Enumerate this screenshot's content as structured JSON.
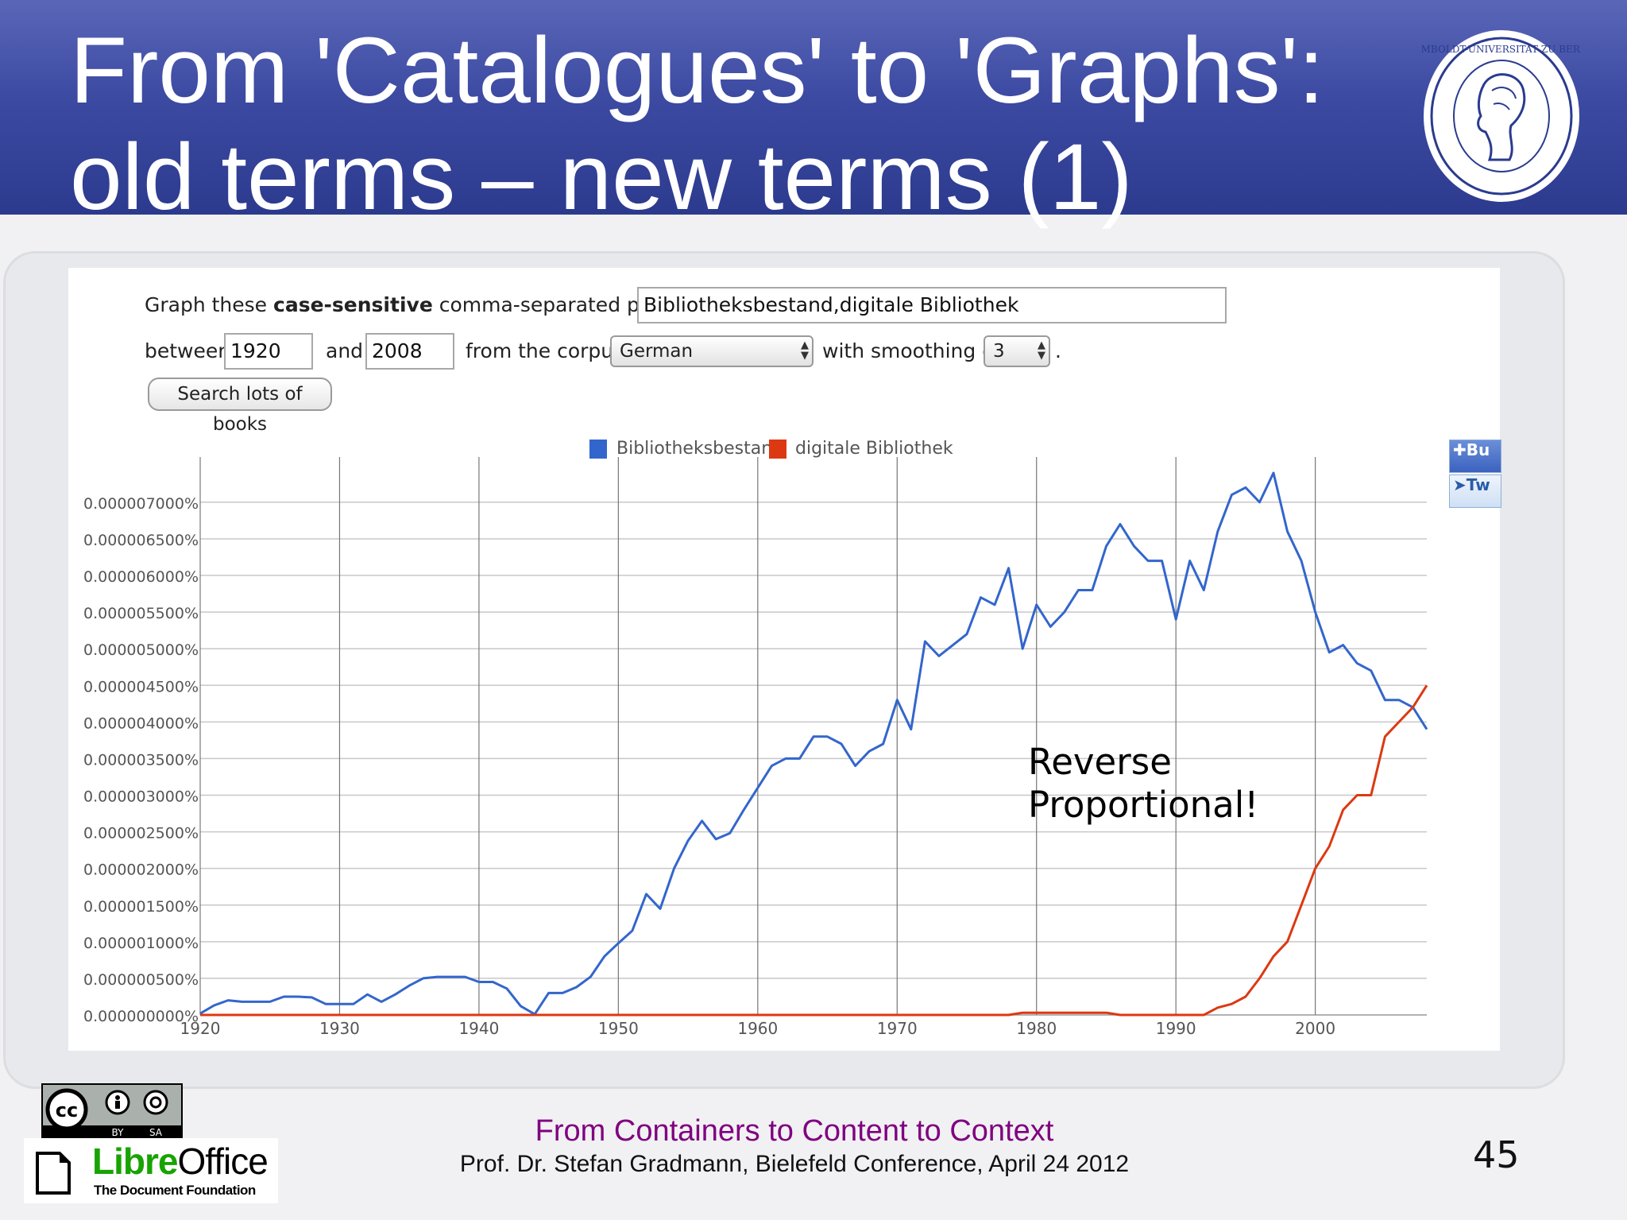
{
  "slide": {
    "title_lines": [
      "From 'Catalogues' to 'Graphs':",
      "old terms – new terms (1)"
    ],
    "footer_title": "From Containers to Content to Context",
    "footer_subtitle": "Prof. Dr. Stefan Gradmann, Bielefeld Conference, April 24 2012",
    "page_number": "45",
    "annotation": [
      "Reverse",
      "Proportional!"
    ],
    "seal_text": "HUMBOLDT-UNIVERSITÄT ZU BERLIN",
    "cc_labels": [
      "BY",
      "SA"
    ],
    "libreoffice": {
      "name_green": "Libre",
      "name_dark": "Office",
      "tagline": "The Document Foundation"
    }
  },
  "ngram_form": {
    "phrases_label_pre": "Graph these ",
    "phrases_label_bold": "case-sensitive",
    "phrases_label_post": " comma-separated phrases:",
    "phrases_value": "Bibliotheksbestand,digitale Bibliothek",
    "between_label": "between",
    "start_year": "1920",
    "and_label": "and",
    "end_year": "2008",
    "corpus_label": "from the corpus",
    "corpus_value": "German",
    "smoothing_label": "with smoothing of",
    "smoothing_value": "3",
    "period": ".",
    "search_button": "Search lots of books",
    "share_buttons": [
      "Bu",
      "Tw"
    ]
  },
  "colors": {
    "header": "#3c4aa2",
    "series_blue": "#3366cc",
    "series_red": "#dc3912",
    "footer_purple": "#800080"
  },
  "chart_data": {
    "type": "line",
    "title": "",
    "xlabel": "",
    "ylabel": "",
    "xlim": [
      1920,
      2008
    ],
    "ylim": [
      0,
      7.4e-06
    ],
    "x_ticks": [
      "1920",
      "1930",
      "1940",
      "1950",
      "1960",
      "1970",
      "1980",
      "1990",
      "2000"
    ],
    "y_ticks": [
      "0.000007000%",
      "0.000006500%",
      "0.000006000%",
      "0.000005500%",
      "0.000005000%",
      "0.000004500%",
      "0.000004000%",
      "0.000003500%",
      "0.000003000%",
      "0.000002500%",
      "0.000002000%",
      "0.000001500%",
      "0.000001000%",
      "0.000000500%",
      "0.000000000%"
    ],
    "y_tick_values": [
      7e-06,
      6.5e-06,
      6e-06,
      5.5e-06,
      5e-06,
      4.5e-06,
      4e-06,
      3.5e-06,
      3e-06,
      2.5e-06,
      2e-06,
      1.5e-06,
      1e-06,
      5e-07,
      0
    ],
    "legend_position": "top-center",
    "grid": true,
    "series": [
      {
        "name": "Bibliotheksbestand",
        "color": "#3366cc",
        "points": [
          [
            1920,
            2e-08
          ],
          [
            1921,
            1.3e-07
          ],
          [
            1922,
            2e-07
          ],
          [
            1923,
            1.8e-07
          ],
          [
            1924,
            1.8e-07
          ],
          [
            1925,
            1.8e-07
          ],
          [
            1926,
            2.5e-07
          ],
          [
            1927,
            2.5e-07
          ],
          [
            1928,
            2.4e-07
          ],
          [
            1929,
            1.5e-07
          ],
          [
            1930,
            1.5e-07
          ],
          [
            1931,
            1.5e-07
          ],
          [
            1932,
            2.8e-07
          ],
          [
            1933,
            1.8e-07
          ],
          [
            1934,
            2.8e-07
          ],
          [
            1935,
            4e-07
          ],
          [
            1936,
            5e-07
          ],
          [
            1937,
            5.2e-07
          ],
          [
            1938,
            5.2e-07
          ],
          [
            1939,
            5.2e-07
          ],
          [
            1940,
            4.5e-07
          ],
          [
            1941,
            4.5e-07
          ],
          [
            1942,
            3.6e-07
          ],
          [
            1943,
            1.2e-07
          ],
          [
            1944,
            1e-08
          ],
          [
            1945,
            3e-07
          ],
          [
            1946,
            3e-07
          ],
          [
            1947,
            3.8e-07
          ],
          [
            1948,
            5.2e-07
          ],
          [
            1949,
            8e-07
          ],
          [
            1950,
            9.8e-07
          ],
          [
            1951,
            1.15e-06
          ],
          [
            1952,
            1.65e-06
          ],
          [
            1953,
            1.45e-06
          ],
          [
            1954,
            2e-06
          ],
          [
            1955,
            2.38e-06
          ],
          [
            1956,
            2.65e-06
          ],
          [
            1957,
            2.4e-06
          ],
          [
            1958,
            2.48e-06
          ],
          [
            1959,
            2.8e-06
          ],
          [
            1960,
            3.1e-06
          ],
          [
            1961,
            3.4e-06
          ],
          [
            1962,
            3.5e-06
          ],
          [
            1963,
            3.5e-06
          ],
          [
            1964,
            3.8e-06
          ],
          [
            1965,
            3.8e-06
          ],
          [
            1966,
            3.7e-06
          ],
          [
            1967,
            3.4e-06
          ],
          [
            1968,
            3.6e-06
          ],
          [
            1969,
            3.7e-06
          ],
          [
            1970,
            4.3e-06
          ],
          [
            1971,
            3.9e-06
          ],
          [
            1972,
            5.1e-06
          ],
          [
            1973,
            4.9e-06
          ],
          [
            1974,
            5.05e-06
          ],
          [
            1975,
            5.2e-06
          ],
          [
            1976,
            5.7e-06
          ],
          [
            1977,
            5.6e-06
          ],
          [
            1978,
            6.1e-06
          ],
          [
            1979,
            5e-06
          ],
          [
            1980,
            5.6e-06
          ],
          [
            1981,
            5.3e-06
          ],
          [
            1982,
            5.5e-06
          ],
          [
            1983,
            5.8e-06
          ],
          [
            1984,
            5.8e-06
          ],
          [
            1985,
            6.4e-06
          ],
          [
            1986,
            6.7e-06
          ],
          [
            1987,
            6.4e-06
          ],
          [
            1988,
            6.2e-06
          ],
          [
            1989,
            6.2e-06
          ],
          [
            1990,
            5.4e-06
          ],
          [
            1991,
            6.2e-06
          ],
          [
            1992,
            5.8e-06
          ],
          [
            1993,
            6.6e-06
          ],
          [
            1994,
            7.1e-06
          ],
          [
            1995,
            7.2e-06
          ],
          [
            1996,
            7e-06
          ],
          [
            1997,
            7.4e-06
          ],
          [
            1998,
            6.6e-06
          ],
          [
            1999,
            6.2e-06
          ],
          [
            2000,
            5.5e-06
          ],
          [
            2001,
            4.95e-06
          ],
          [
            2002,
            5.05e-06
          ],
          [
            2003,
            4.8e-06
          ],
          [
            2004,
            4.7e-06
          ],
          [
            2005,
            4.3e-06
          ],
          [
            2006,
            4.3e-06
          ],
          [
            2007,
            4.2e-06
          ],
          [
            2008,
            3.9e-06
          ]
        ]
      },
      {
        "name": "digitale Bibliothek",
        "color": "#dc3912",
        "points": [
          [
            1920,
            0.0
          ],
          [
            1970,
            0.0
          ],
          [
            1978,
            0.0
          ],
          [
            1979,
            3e-08
          ],
          [
            1980,
            3e-08
          ],
          [
            1981,
            3e-08
          ],
          [
            1982,
            3e-08
          ],
          [
            1983,
            3e-08
          ],
          [
            1984,
            3e-08
          ],
          [
            1985,
            3e-08
          ],
          [
            1986,
            0.0
          ],
          [
            1990,
            0.0
          ],
          [
            1992,
            0.0
          ],
          [
            1993,
            1e-07
          ],
          [
            1994,
            1.5e-07
          ],
          [
            1995,
            2.5e-07
          ],
          [
            1996,
            5e-07
          ],
          [
            1997,
            8e-07
          ],
          [
            1998,
            1e-06
          ],
          [
            1999,
            1.5e-06
          ],
          [
            2000,
            2e-06
          ],
          [
            2001,
            2.3e-06
          ],
          [
            2002,
            2.8e-06
          ],
          [
            2003,
            3e-06
          ],
          [
            2004,
            3e-06
          ],
          [
            2005,
            3.8e-06
          ],
          [
            2006,
            4e-06
          ],
          [
            2007,
            4.2e-06
          ],
          [
            2008,
            4.5e-06
          ]
        ]
      }
    ]
  }
}
